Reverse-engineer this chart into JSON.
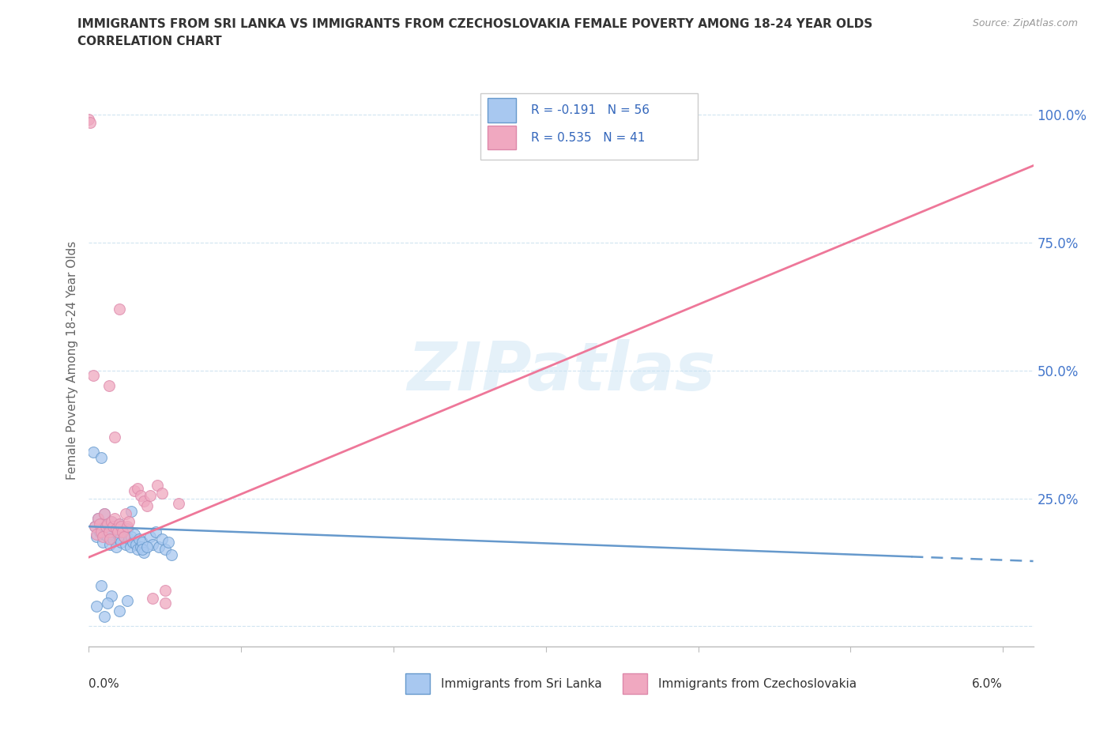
{
  "title_line1": "IMMIGRANTS FROM SRI LANKA VS IMMIGRANTS FROM CZECHOSLOVAKIA FEMALE POVERTY AMONG 18-24 YEAR OLDS",
  "title_line2": "CORRELATION CHART",
  "source_text": "Source: ZipAtlas.com",
  "ylabel": "Female Poverty Among 18-24 Year Olds",
  "xlim": [
    0.0,
    0.062
  ],
  "ylim": [
    -0.04,
    1.08
  ],
  "y_ticks": [
    0.0,
    0.25,
    0.5,
    0.75,
    1.0
  ],
  "y_tick_labels": [
    "",
    "25.0%",
    "50.0%",
    "75.0%",
    "100.0%"
  ],
  "x_tick_positions": [
    0.0,
    0.01,
    0.02,
    0.03,
    0.04,
    0.05,
    0.06
  ],
  "watermark": "ZIPatlas",
  "legend_blue_r": "R = -0.191",
  "legend_blue_n": "N = 56",
  "legend_pink_r": "R = 0.535",
  "legend_pink_n": "N = 41",
  "legend_label_blue": "Immigrants from Sri Lanka",
  "legend_label_pink": "Immigrants from Czechoslovakia",
  "blue_color": "#a8c8f0",
  "pink_color": "#f0a8c0",
  "blue_edge_color": "#6699cc",
  "pink_edge_color": "#dd88aa",
  "blue_line_color": "#6699cc",
  "pink_line_color": "#ee7799",
  "title_color": "#333333",
  "axis_label_color": "#666666",
  "right_tick_color": "#4477cc",
  "grid_color": "#d0e4f0",
  "source_color": "#999999",
  "blue_scatter": [
    [
      0.0004,
      0.195
    ],
    [
      0.0005,
      0.175
    ],
    [
      0.0006,
      0.21
    ],
    [
      0.0007,
      0.185
    ],
    [
      0.0008,
      0.2
    ],
    [
      0.0009,
      0.165
    ],
    [
      0.001,
      0.22
    ],
    [
      0.001,
      0.18
    ],
    [
      0.0011,
      0.195
    ],
    [
      0.0012,
      0.175
    ],
    [
      0.0013,
      0.19
    ],
    [
      0.0014,
      0.16
    ],
    [
      0.0015,
      0.205
    ],
    [
      0.0015,
      0.185
    ],
    [
      0.0016,
      0.17
    ],
    [
      0.0017,
      0.195
    ],
    [
      0.0018,
      0.155
    ],
    [
      0.0019,
      0.18
    ],
    [
      0.002,
      0.17
    ],
    [
      0.002,
      0.2
    ],
    [
      0.0021,
      0.165
    ],
    [
      0.0022,
      0.185
    ],
    [
      0.0023,
      0.175
    ],
    [
      0.0024,
      0.16
    ],
    [
      0.0025,
      0.19
    ],
    [
      0.0026,
      0.17
    ],
    [
      0.0027,
      0.155
    ],
    [
      0.0028,
      0.175
    ],
    [
      0.0029,
      0.165
    ],
    [
      0.003,
      0.18
    ],
    [
      0.0031,
      0.16
    ],
    [
      0.0032,
      0.15
    ],
    [
      0.0033,
      0.17
    ],
    [
      0.0034,
      0.155
    ],
    [
      0.0035,
      0.165
    ],
    [
      0.0036,
      0.145
    ],
    [
      0.0003,
      0.34
    ],
    [
      0.0008,
      0.33
    ],
    [
      0.0005,
      0.04
    ],
    [
      0.001,
      0.02
    ],
    [
      0.0015,
      0.06
    ],
    [
      0.002,
      0.03
    ],
    [
      0.0025,
      0.05
    ],
    [
      0.0008,
      0.08
    ],
    [
      0.0012,
      0.045
    ],
    [
      0.004,
      0.175
    ],
    [
      0.0042,
      0.16
    ],
    [
      0.0044,
      0.185
    ],
    [
      0.0046,
      0.155
    ],
    [
      0.0048,
      0.17
    ],
    [
      0.005,
      0.15
    ],
    [
      0.0052,
      0.165
    ],
    [
      0.0054,
      0.14
    ],
    [
      0.0035,
      0.15
    ],
    [
      0.0038,
      0.155
    ],
    [
      0.0028,
      0.225
    ]
  ],
  "pink_scatter": [
    [
      0.0004,
      0.195
    ],
    [
      0.0005,
      0.18
    ],
    [
      0.0006,
      0.21
    ],
    [
      0.0007,
      0.2
    ],
    [
      0.0008,
      0.185
    ],
    [
      0.0009,
      0.175
    ],
    [
      0.001,
      0.22
    ],
    [
      0.0011,
      0.195
    ],
    [
      0.0012,
      0.2
    ],
    [
      0.0013,
      0.185
    ],
    [
      0.0014,
      0.17
    ],
    [
      0.0015,
      0.205
    ],
    [
      0.0016,
      0.195
    ],
    [
      0.0017,
      0.21
    ],
    [
      0.0018,
      0.19
    ],
    [
      0.0019,
      0.185
    ],
    [
      0.002,
      0.2
    ],
    [
      0.0021,
      0.195
    ],
    [
      0.0022,
      0.185
    ],
    [
      0.0023,
      0.175
    ],
    [
      0.0024,
      0.22
    ],
    [
      0.0025,
      0.195
    ],
    [
      0.0026,
      0.205
    ],
    [
      0.0013,
      0.47
    ],
    [
      0.002,
      0.62
    ],
    [
      0.0017,
      0.37
    ],
    [
      0.0003,
      0.49
    ],
    [
      0.0,
      0.99
    ],
    [
      0.0001,
      0.985
    ],
    [
      0.003,
      0.265
    ],
    [
      0.0032,
      0.27
    ],
    [
      0.0034,
      0.255
    ],
    [
      0.0036,
      0.245
    ],
    [
      0.0038,
      0.235
    ],
    [
      0.004,
      0.255
    ],
    [
      0.0045,
      0.275
    ],
    [
      0.0048,
      0.26
    ],
    [
      0.0042,
      0.055
    ],
    [
      0.005,
      0.045
    ],
    [
      0.0059,
      0.24
    ],
    [
      0.005,
      0.07
    ]
  ]
}
